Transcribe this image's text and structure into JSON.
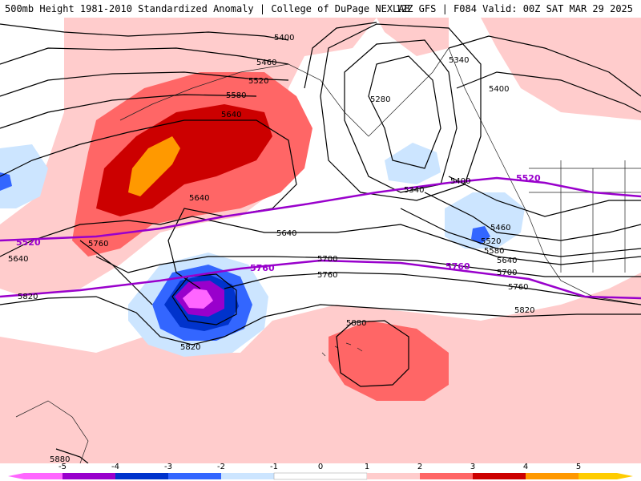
{
  "header": {
    "left": "500mb Height 1981-2010 Standardized Anomaly | College of DuPage NEXLAB",
    "right": "12Z GFS | F084 Valid: 00Z SAT MAR 29 2025"
  },
  "colors": {
    "neg5": "#ff66ff",
    "neg4": "#9900cc",
    "neg3": "#0033cc",
    "neg2": "#3366ff",
    "neg1": "#cce5ff",
    "pos1": "#ffcccc",
    "pos2": "#ff6666",
    "pos3": "#cc0000",
    "pos4": "#ff9900",
    "contour": "#000000",
    "highlight": "#9900cc"
  },
  "contour_labels": {
    "c1": "5400",
    "c2": "5460",
    "c3": "5520",
    "c4": "5580",
    "c5": "5640",
    "c6": "5340",
    "c7": "5400",
    "c8": "5280",
    "c9": "5340",
    "c10": "5400",
    "c11": "5460",
    "c12": "5520",
    "c13": "5580",
    "c14": "5640",
    "c15": "5700",
    "c16": "5760",
    "c17": "5820",
    "c18": "5640",
    "c19": "5640",
    "c20": "5760",
    "c21": "5700",
    "c22": "5760",
    "c23": "5820",
    "c24": "5640",
    "c25": "5820",
    "c26": "5880",
    "c27": "5880"
  },
  "highlight_labels": {
    "h1": "5520",
    "h2": "5520",
    "h3": "5760",
    "h4": "5760"
  },
  "legend": {
    "ticks": [
      "-5",
      "-4",
      "-3",
      "-2",
      "-1",
      "0",
      "1",
      "2",
      "3",
      "4",
      "5"
    ]
  }
}
